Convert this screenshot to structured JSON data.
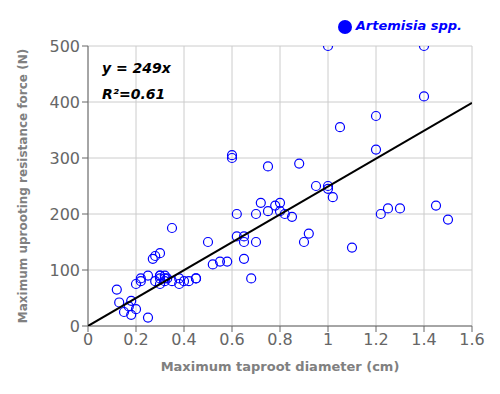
{
  "chart_data": {
    "type": "scatter",
    "xlabel": "Maximum taproot diameter (cm)",
    "ylabel": "Maximum uprooting resistance force (N)",
    "annotations": [
      "y = 249x",
      "R²=0.61"
    ],
    "xlim": [
      0,
      1.6
    ],
    "ylim": [
      0,
      500
    ],
    "xticks": [
      0,
      0.2,
      0.4,
      0.6,
      0.8,
      1,
      1.2,
      1.4,
      1.6
    ],
    "yticks": [
      0,
      100,
      200,
      300,
      400,
      500
    ],
    "grid": true,
    "legend": "upper right",
    "series": [
      {
        "name": "Artemisia spp.",
        "type": "scatter",
        "marker": "circle",
        "color": "#0000FF",
        "x": [
          0.12,
          0.13,
          0.15,
          0.17,
          0.18,
          0.18,
          0.2,
          0.2,
          0.22,
          0.22,
          0.25,
          0.25,
          0.27,
          0.28,
          0.28,
          0.3,
          0.3,
          0.3,
          0.3,
          0.3,
          0.32,
          0.32,
          0.32,
          0.33,
          0.35,
          0.35,
          0.38,
          0.38,
          0.4,
          0.42,
          0.45,
          0.45,
          0.5,
          0.52,
          0.55,
          0.58,
          0.6,
          0.6,
          0.62,
          0.62,
          0.65,
          0.65,
          0.65,
          0.68,
          0.7,
          0.7,
          0.72,
          0.75,
          0.75,
          0.78,
          0.8,
          0.8,
          0.82,
          0.85,
          0.88,
          0.9,
          0.92,
          0.95,
          1.0,
          1.0,
          1.0,
          1.02,
          1.05,
          1.1,
          1.2,
          1.2,
          1.22,
          1.25,
          1.3,
          1.4,
          1.4,
          1.45,
          1.5
        ],
        "values": [
          65,
          42,
          25,
          35,
          45,
          20,
          75,
          30,
          85,
          80,
          90,
          15,
          120,
          125,
          80,
          90,
          85,
          75,
          90,
          130,
          90,
          85,
          80,
          85,
          175,
          80,
          75,
          85,
          80,
          80,
          85,
          85,
          150,
          110,
          115,
          115,
          305,
          300,
          200,
          160,
          150,
          120,
          160,
          85,
          150,
          200,
          220,
          285,
          205,
          215,
          220,
          205,
          200,
          195,
          290,
          150,
          165,
          250,
          250,
          245,
          500,
          230,
          355,
          140,
          315,
          375,
          200,
          210,
          210,
          500,
          410,
          215,
          190
        ]
      },
      {
        "type": "line",
        "color": "#000000",
        "x": [
          0,
          1.6
        ],
        "values": [
          0,
          398.4
        ]
      }
    ]
  }
}
